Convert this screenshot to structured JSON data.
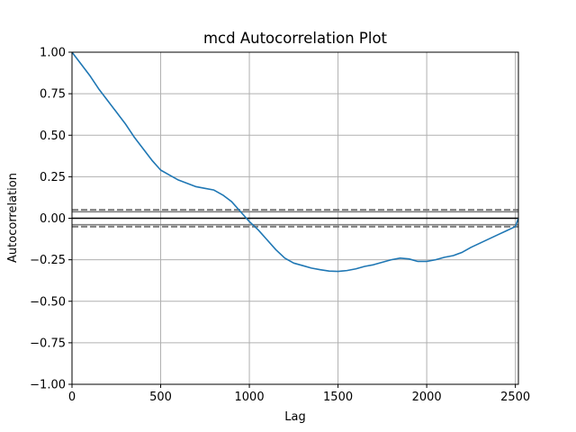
{
  "chart_data": {
    "type": "line",
    "title": "mcd Autocorrelation Plot",
    "xlabel": "Lag",
    "ylabel": "Autocorrelation",
    "xlim": [
      0,
      2517
    ],
    "ylim": [
      -1.0,
      1.0
    ],
    "grid": true,
    "x_ticks": [
      0,
      500,
      1000,
      1500,
      2000,
      2500
    ],
    "x_tick_labels": [
      "0",
      "500",
      "1000",
      "1500",
      "2000",
      "2500"
    ],
    "y_ticks": [
      1.0,
      0.75,
      0.5,
      0.25,
      0.0,
      -0.25,
      -0.5,
      -0.75,
      -1.0
    ],
    "y_tick_labels": [
      "1.00",
      "0.75",
      "0.50",
      "0.25",
      "0.00",
      "−0.25",
      "−0.50",
      "−0.75",
      "−1.00"
    ],
    "series": [
      {
        "name": "autocorrelation",
        "color": "#1f77b4",
        "x": [
          0,
          50,
          100,
          150,
          200,
          250,
          300,
          350,
          400,
          450,
          500,
          550,
          600,
          650,
          700,
          750,
          800,
          850,
          900,
          950,
          1000,
          1050,
          1100,
          1150,
          1200,
          1250,
          1300,
          1350,
          1400,
          1450,
          1500,
          1550,
          1600,
          1650,
          1700,
          1750,
          1800,
          1850,
          1900,
          1950,
          2000,
          2050,
          2100,
          2150,
          2200,
          2250,
          2300,
          2350,
          2400,
          2450,
          2500,
          2517
        ],
        "values": [
          1.0,
          0.93,
          0.86,
          0.78,
          0.71,
          0.64,
          0.57,
          0.49,
          0.42,
          0.35,
          0.29,
          0.26,
          0.23,
          0.21,
          0.19,
          0.18,
          0.17,
          0.14,
          0.1,
          0.04,
          -0.02,
          -0.07,
          -0.13,
          -0.19,
          -0.24,
          -0.27,
          -0.285,
          -0.3,
          -0.31,
          -0.318,
          -0.32,
          -0.315,
          -0.305,
          -0.29,
          -0.28,
          -0.265,
          -0.25,
          -0.24,
          -0.245,
          -0.26,
          -0.26,
          -0.25,
          -0.235,
          -0.225,
          -0.205,
          -0.175,
          -0.15,
          -0.125,
          -0.1,
          -0.075,
          -0.05,
          0.0
        ]
      }
    ],
    "reference_lines": [
      {
        "name": "zero-line",
        "value": 0.0,
        "color": "#000000",
        "style": "solid"
      },
      {
        "name": "upper-confidence-99",
        "value": 0.051,
        "color": "#808080",
        "style": "dashed"
      },
      {
        "name": "upper-confidence-95",
        "value": 0.039,
        "color": "#808080",
        "style": "solid"
      },
      {
        "name": "lower-confidence-95",
        "value": -0.039,
        "color": "#808080",
        "style": "solid"
      },
      {
        "name": "lower-confidence-99",
        "value": -0.051,
        "color": "#808080",
        "style": "dashed"
      }
    ]
  }
}
